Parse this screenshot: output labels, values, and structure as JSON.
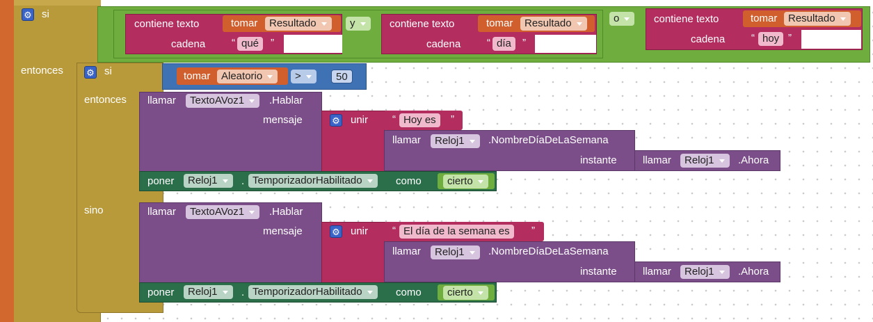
{
  "outer_if": {
    "kw_si": "si",
    "kw_entonces": "entonces",
    "cond": {
      "c1": {
        "contains": "contiene texto",
        "get": "tomar",
        "var": "Resultado",
        "cadena": "cadena",
        "text": "qué"
      },
      "op_y": "y",
      "c2": {
        "contains": "contiene texto",
        "get": "tomar",
        "var": "Resultado",
        "cadena": "cadena",
        "text": "día"
      },
      "op_o": "o",
      "c3": {
        "contains": "contiene texto",
        "get": "tomar",
        "var": "Resultado",
        "cadena": "cadena",
        "text": "hoy"
      }
    }
  },
  "inner_if": {
    "kw_si": "si",
    "kw_entonces": "entonces",
    "kw_sino": "sino",
    "cond": {
      "get": "tomar",
      "var": "Aleatorio",
      "op": ">",
      "value": "50"
    }
  },
  "then_branch": {
    "speak": {
      "call": "llamar",
      "component": "TextoAVoz1",
      "method": ".Hablar",
      "param": "mensaje"
    },
    "join": {
      "label": "unir",
      "text": "Hoy es"
    },
    "dayname": {
      "call": "llamar",
      "component": "Reloj1",
      "method": ".NombreDíaDeLaSemana",
      "param": "instante"
    },
    "now": {
      "call": "llamar",
      "component": "Reloj1",
      "method": ".Ahora"
    },
    "set": {
      "set": "poner",
      "component": "Reloj1",
      "dot": ".",
      "property": "TemporizadorHabilitado",
      "como": "como",
      "value": "cierto"
    }
  },
  "else_branch": {
    "speak": {
      "call": "llamar",
      "component": "TextoAVoz1",
      "method": ".Hablar",
      "param": "mensaje"
    },
    "join": {
      "label": "unir",
      "text": "El día de la semana es"
    },
    "dayname": {
      "call": "llamar",
      "component": "Reloj1",
      "method": ".NombreDíaDeLaSemana",
      "param": "instante"
    },
    "now": {
      "call": "llamar",
      "component": "Reloj1",
      "method": ".Ahora"
    },
    "set": {
      "set": "poner",
      "component": "Reloj1",
      "dot": ".",
      "property": "TemporizadorHabilitado",
      "como": "como",
      "value": "cierto"
    }
  },
  "quote": "“",
  "quote_close": "”",
  "gear_symbol": "⚙",
  "colors": {
    "control": "#B99A3A",
    "logic": "#6FAE3E",
    "text": "#B32D5E",
    "variable": "#D05F2D",
    "math": "#3F71B5",
    "component_call": "#7B4E89",
    "component_set": "#2B6E4A"
  }
}
